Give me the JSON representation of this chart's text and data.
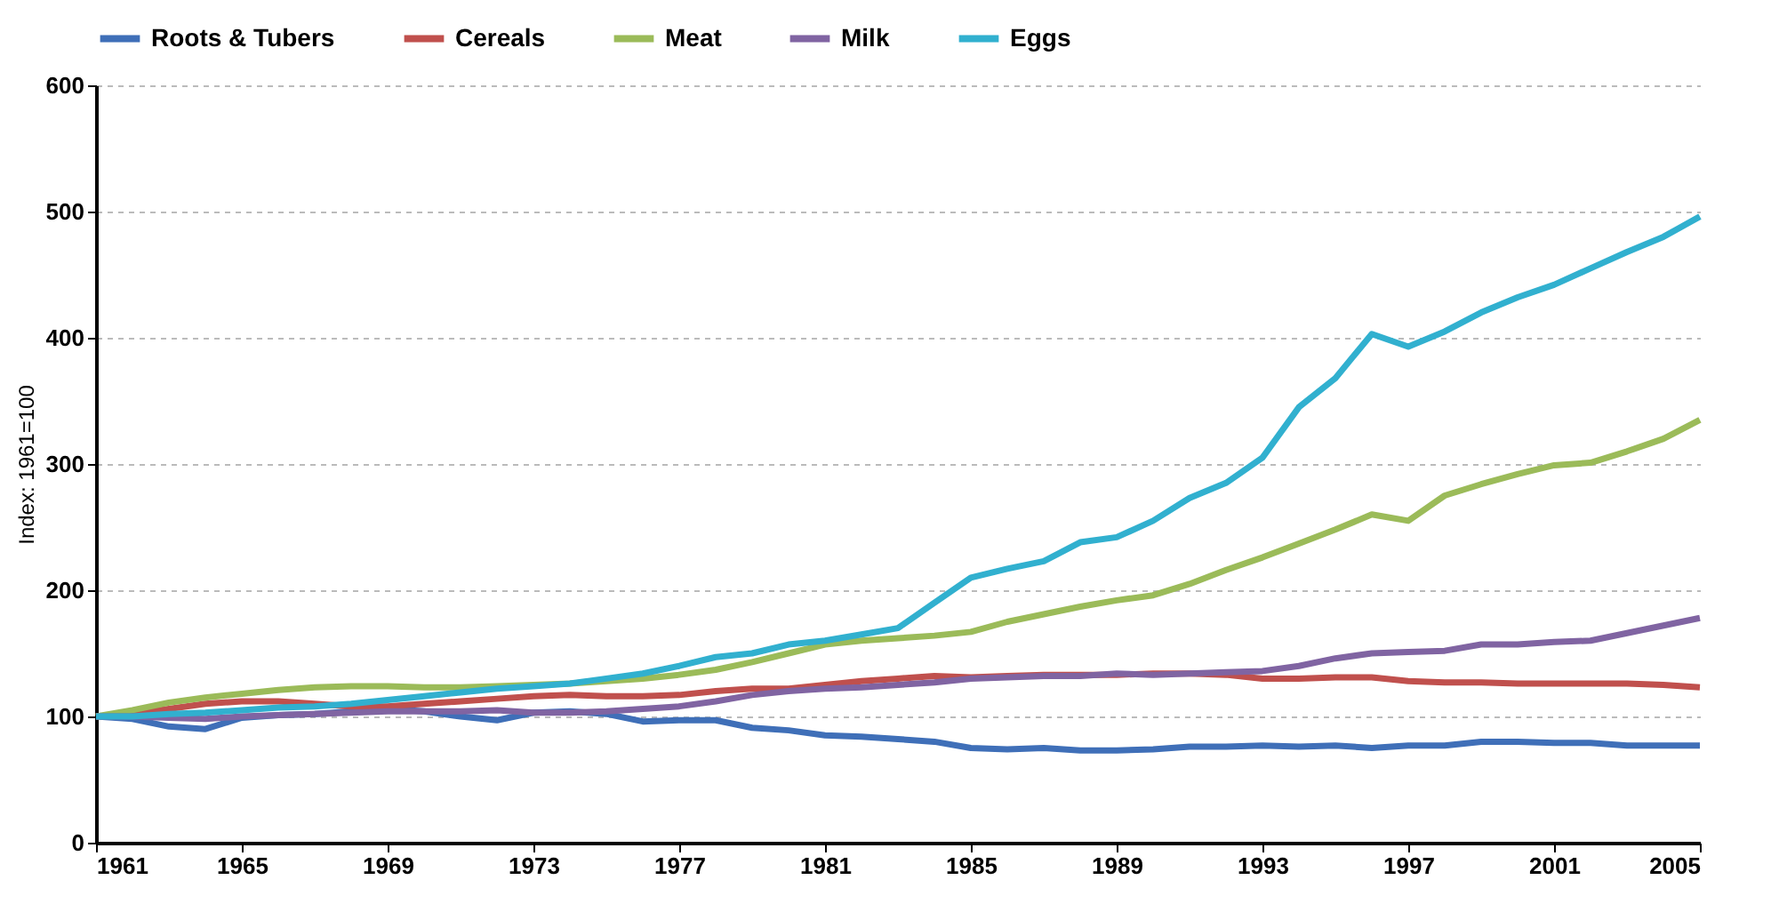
{
  "chart_data": {
    "type": "line",
    "ylabel": "Index: 1961=100",
    "x": [
      1961,
      1962,
      1963,
      1964,
      1965,
      1966,
      1967,
      1968,
      1969,
      1970,
      1971,
      1972,
      1973,
      1974,
      1975,
      1976,
      1977,
      1978,
      1979,
      1980,
      1981,
      1982,
      1983,
      1984,
      1985,
      1986,
      1987,
      1988,
      1989,
      1990,
      1991,
      1992,
      1993,
      1994,
      1995,
      1996,
      1997,
      1998,
      1999,
      2000,
      2001,
      2002,
      2003,
      2004,
      2005
    ],
    "series": [
      {
        "name": "Roots & Tubers",
        "color": "#3f6fb8",
        "values": [
          100,
          98,
          92,
          90,
          99,
          101,
          102,
          104,
          106,
          104,
          100,
          97,
          103,
          104,
          102,
          96,
          97,
          97,
          91,
          89,
          85,
          84,
          82,
          80,
          75,
          74,
          75,
          73,
          73,
          74,
          76,
          76,
          77,
          76,
          77,
          75,
          77,
          77,
          80,
          80,
          79,
          79,
          77,
          77,
          77
        ]
      },
      {
        "name": "Cereals",
        "color": "#c0504d",
        "values": [
          100,
          102,
          106,
          110,
          112,
          112,
          110,
          108,
          108,
          110,
          112,
          114,
          116,
          117,
          116,
          116,
          117,
          120,
          122,
          122,
          125,
          128,
          130,
          132,
          131,
          132,
          133,
          133,
          133,
          134,
          134,
          133,
          130,
          130,
          131,
          131,
          128,
          127,
          127,
          126,
          126,
          126,
          126,
          125,
          123
        ]
      },
      {
        "name": "Meat",
        "color": "#9bbb59",
        "values": [
          100,
          105,
          111,
          115,
          118,
          121,
          123,
          124,
          124,
          123,
          123,
          124,
          125,
          126,
          128,
          130,
          133,
          137,
          143,
          150,
          157,
          160,
          162,
          164,
          167,
          175,
          181,
          187,
          192,
          196,
          205,
          216,
          226,
          237,
          248,
          260,
          255,
          275,
          284,
          292,
          299,
          301,
          310,
          320,
          335
        ]
      },
      {
        "name": "Milk",
        "color": "#8064a2",
        "values": [
          100,
          100,
          99,
          98,
          100,
          101,
          102,
          103,
          104,
          104,
          104,
          105,
          103,
          103,
          104,
          106,
          108,
          112,
          117,
          120,
          122,
          123,
          125,
          127,
          130,
          131,
          132,
          132,
          134,
          133,
          134,
          135,
          136,
          140,
          146,
          150,
          151,
          152,
          157,
          157,
          159,
          160,
          166,
          172,
          178
        ]
      },
      {
        "name": "Eggs",
        "color": "#31b0cf",
        "values": [
          100,
          100,
          102,
          103,
          105,
          107,
          108,
          110,
          113,
          116,
          119,
          122,
          124,
          126,
          130,
          134,
          140,
          147,
          150,
          157,
          160,
          165,
          170,
          190,
          210,
          217,
          223,
          238,
          242,
          255,
          273,
          285,
          305,
          345,
          368,
          403,
          393,
          405,
          420,
          432,
          442,
          455,
          468,
          480,
          496
        ]
      }
    ],
    "xlim": [
      1961,
      2005
    ],
    "xticks": [
      1961,
      1965,
      1969,
      1973,
      1977,
      1981,
      1985,
      1989,
      1993,
      1997,
      2001,
      2005
    ],
    "ylim": [
      0,
      600
    ],
    "yticks": [
      0,
      100,
      200,
      300,
      400,
      500,
      600
    ],
    "grid": "y",
    "legend": "top",
    "marker": "none",
    "line_style": "solid"
  }
}
